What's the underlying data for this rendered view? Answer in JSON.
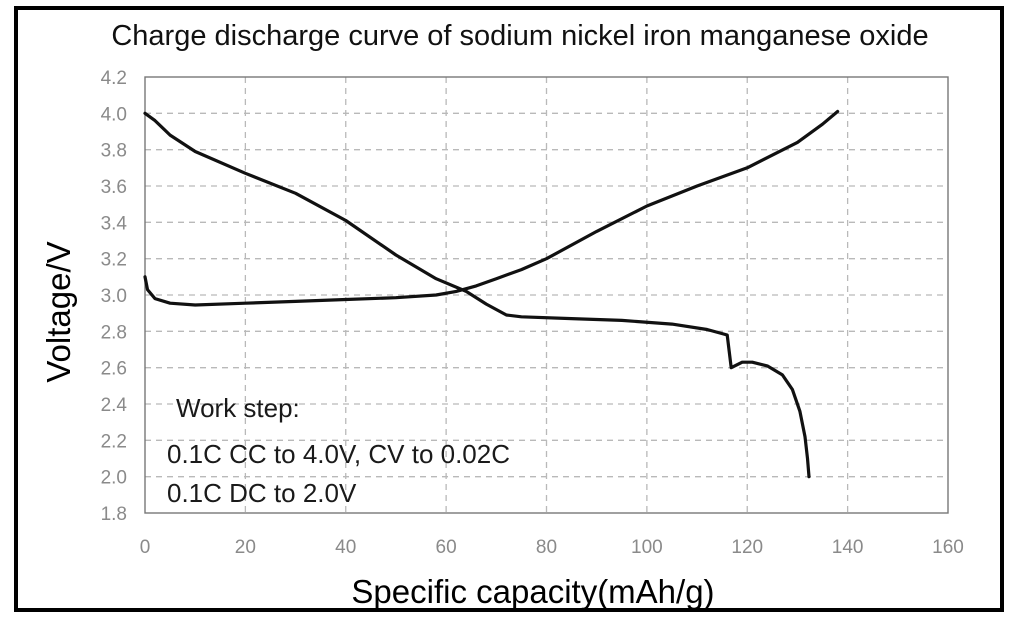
{
  "chart_data": {
    "type": "line",
    "title": "Charge discharge curve of sodium nickel iron manganese oxide",
    "xlabel": "Specific capacity(mAh/g)",
    "ylabel": "Voltage/V",
    "xlim": [
      0,
      160
    ],
    "ylim": [
      1.8,
      4.2
    ],
    "xticks": [
      "0",
      "20",
      "40",
      "60",
      "80",
      "100",
      "120",
      "140",
      "160"
    ],
    "yticks": [
      "1.8",
      "2.0",
      "2.2",
      "2.4",
      "2.6",
      "2.8",
      "3.0",
      "3.2",
      "3.4",
      "3.6",
      "3.8",
      "4.0",
      "4.2"
    ],
    "grid": true,
    "annotations": [
      "Work step:",
      "0.1C CC to 4.0V, CV to 0.02C",
      "0.1C DC to 2.0V"
    ],
    "series": [
      {
        "points": [
          [
            0,
            3.1
          ],
          [
            0.5,
            3.03
          ],
          [
            2,
            2.98
          ],
          [
            5,
            2.955
          ],
          [
            10,
            2.945
          ],
          [
            20,
            2.955
          ],
          [
            30,
            2.965
          ],
          [
            40,
            2.975
          ],
          [
            50,
            2.985
          ],
          [
            58,
            3.0
          ],
          [
            62,
            3.02
          ],
          [
            66,
            3.05
          ],
          [
            70,
            3.09
          ],
          [
            75,
            3.14
          ],
          [
            80,
            3.2
          ],
          [
            90,
            3.35
          ],
          [
            100,
            3.49
          ],
          [
            110,
            3.6
          ],
          [
            120,
            3.7
          ],
          [
            130,
            3.84
          ],
          [
            135,
            3.94
          ],
          [
            138,
            4.01
          ]
        ]
      },
      {
        "points": [
          [
            0,
            4.0
          ],
          [
            2,
            3.96
          ],
          [
            5,
            3.88
          ],
          [
            10,
            3.79
          ],
          [
            20,
            3.67
          ],
          [
            30,
            3.56
          ],
          [
            40,
            3.41
          ],
          [
            50,
            3.22
          ],
          [
            58,
            3.09
          ],
          [
            64,
            3.02
          ],
          [
            68,
            2.95
          ],
          [
            72,
            2.89
          ],
          [
            75,
            2.88
          ],
          [
            85,
            2.87
          ],
          [
            95,
            2.86
          ],
          [
            105,
            2.84
          ],
          [
            112,
            2.81
          ],
          [
            116,
            2.78
          ],
          [
            116.8,
            2.6
          ],
          [
            117.5,
            2.61
          ],
          [
            119,
            2.63
          ],
          [
            121,
            2.63
          ],
          [
            124,
            2.61
          ],
          [
            127,
            2.56
          ],
          [
            129,
            2.48
          ],
          [
            130.5,
            2.36
          ],
          [
            131.5,
            2.22
          ],
          [
            132,
            2.1
          ],
          [
            132.3,
            2.0
          ]
        ]
      }
    ]
  }
}
